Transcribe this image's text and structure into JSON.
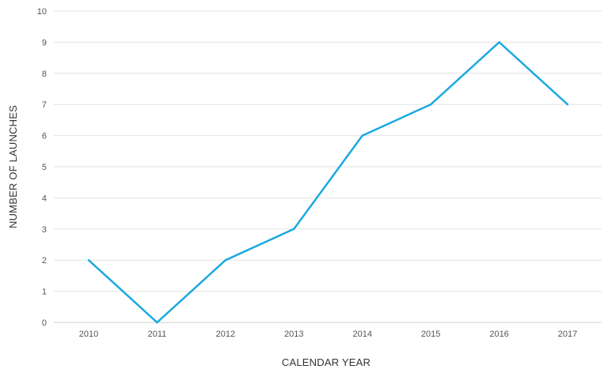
{
  "chart_data": {
    "type": "line",
    "title": "",
    "xlabel": "CALENDAR YEAR",
    "ylabel": "NUMBER OF LAUNCHES",
    "categories": [
      "2010",
      "2011",
      "2012",
      "2013",
      "2014",
      "2015",
      "2016",
      "2017"
    ],
    "series": [
      {
        "values": [
          2,
          0,
          2,
          3,
          6,
          7,
          9,
          7
        ]
      }
    ],
    "ylim": [
      0,
      10
    ],
    "yticks": [
      0,
      1,
      2,
      3,
      4,
      5,
      6,
      7,
      8,
      9,
      10
    ],
    "grid": true,
    "legend": "none",
    "colors": {
      "series": "#1ba9e1",
      "grid": "#e3e3e3"
    }
  }
}
